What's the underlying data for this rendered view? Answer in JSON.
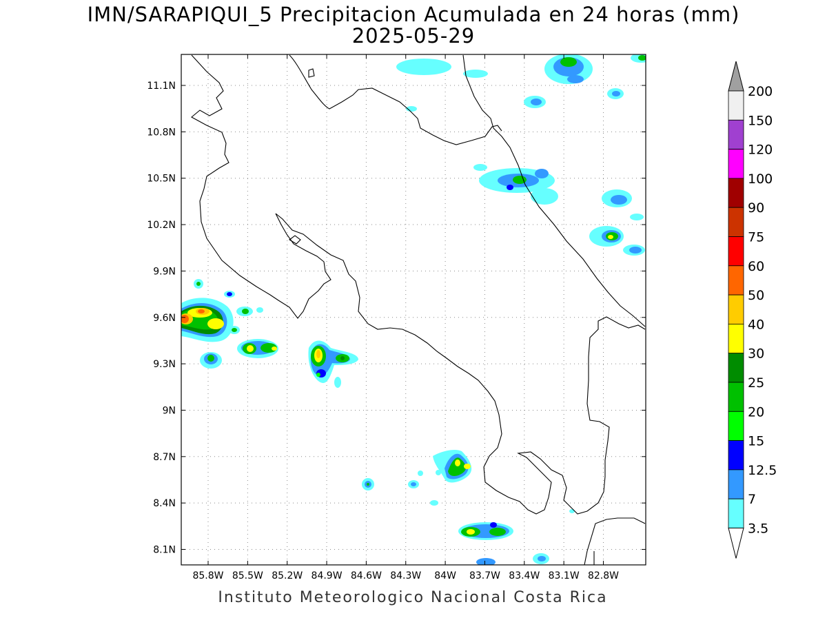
{
  "title": {
    "line1": "IMN/SARAPIQUI_5 Precipitacion Acumulada en 24 horas (mm)",
    "line2": "2025-05-29"
  },
  "footer": "Instituto Meteorologico Nacional Costa Rica",
  "map": {
    "lon_range": [
      -86.0,
      -83.0
    ],
    "lat_range": [
      8.0,
      11.3
    ],
    "lat_ticks": [
      "11.1N",
      "10.8N",
      "10.5N",
      "10.2N",
      "9.9N",
      "9.6N",
      "9.3N",
      "9N",
      "8.7N",
      "8.4N",
      "8.1N"
    ],
    "lon_ticks": [
      "85.8W",
      "85.5W",
      "85.2W",
      "84.9W",
      "84.6W",
      "84.3W",
      "84W",
      "83.7W",
      "83.4W",
      "83.1W",
      "82.8W"
    ],
    "grid": "dotted"
  },
  "colorbar": {
    "labels": [
      "200",
      "150",
      "120",
      "100",
      "90",
      "75",
      "60",
      "50",
      "40",
      "30",
      "25",
      "20",
      "15",
      "12.5",
      "7",
      "3.5"
    ],
    "colors": [
      "#f0f0f0",
      "#a040d0",
      "#ff00ff",
      "#a00000",
      "#cc3300",
      "#ff0000",
      "#ff6600",
      "#ffcc00",
      "#ffff00",
      "#008c00",
      "#00c000",
      "#00ff00",
      "#0000ff",
      "#3399ff",
      "#66ffff"
    ],
    "over_color": "#a0a0a0",
    "under_color": "#ffffff"
  }
}
